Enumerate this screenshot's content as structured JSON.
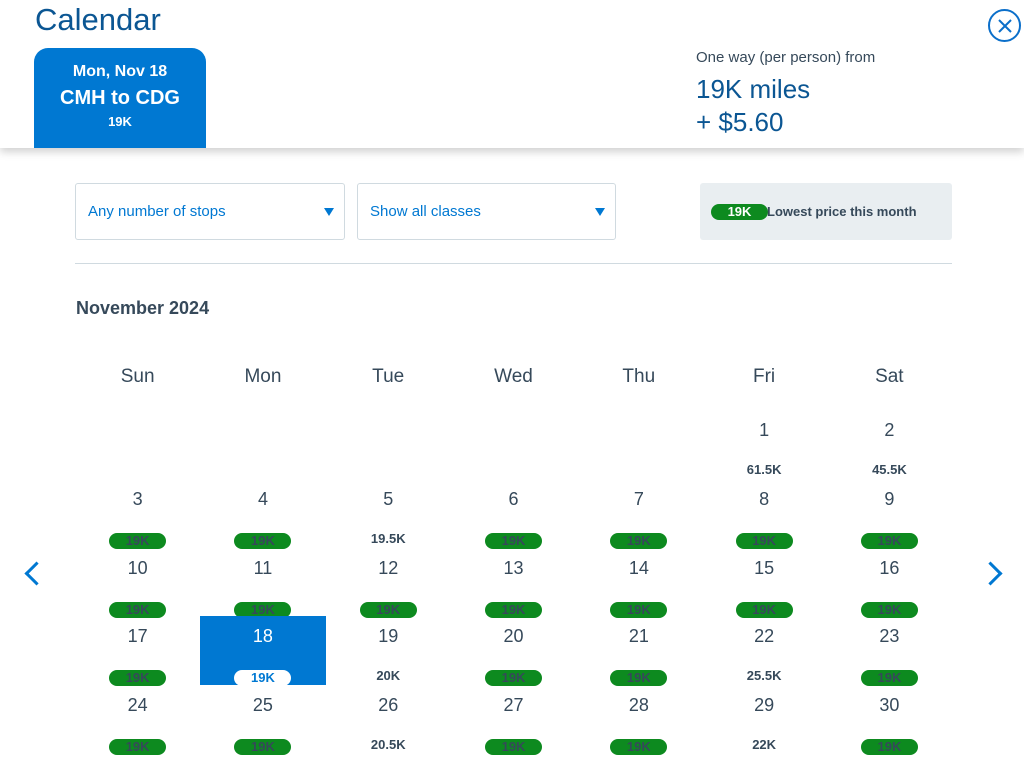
{
  "header": {
    "title": "Calendar",
    "trip": {
      "date": "Mon, Nov 18",
      "route": "CMH to CDG",
      "price": "19K"
    },
    "fare": {
      "label": "One way (per person) from",
      "miles": "19K miles",
      "tax": "+ $5.60"
    }
  },
  "filters": {
    "stops": "Any number of stops",
    "classes": "Show all classes"
  },
  "legend": {
    "badge": "19K",
    "text": "Lowest price this month"
  },
  "calendar": {
    "month": "November 2024",
    "weekdays": [
      "Sun",
      "Mon",
      "Tue",
      "Wed",
      "Thu",
      "Fri",
      "Sat"
    ],
    "selected_day": 18,
    "lowest_price": "19K",
    "days": [
      {
        "day": "",
        "price": ""
      },
      {
        "day": "",
        "price": ""
      },
      {
        "day": "",
        "price": ""
      },
      {
        "day": "",
        "price": ""
      },
      {
        "day": "",
        "price": ""
      },
      {
        "day": "1",
        "price": "61.5K",
        "lowest": false
      },
      {
        "day": "2",
        "price": "45.5K",
        "lowest": false
      },
      {
        "day": "3",
        "price": "19K",
        "lowest": true
      },
      {
        "day": "4",
        "price": "19K",
        "lowest": true
      },
      {
        "day": "5",
        "price": "19.5K",
        "lowest": false
      },
      {
        "day": "6",
        "price": "19K",
        "lowest": true
      },
      {
        "day": "7",
        "price": "19K",
        "lowest": true
      },
      {
        "day": "8",
        "price": "19K",
        "lowest": true
      },
      {
        "day": "9",
        "price": "19K",
        "lowest": true
      },
      {
        "day": "10",
        "price": "19K",
        "lowest": true
      },
      {
        "day": "11",
        "price": "19K",
        "lowest": true
      },
      {
        "day": "12",
        "price": "19K",
        "lowest": true
      },
      {
        "day": "13",
        "price": "19K",
        "lowest": true
      },
      {
        "day": "14",
        "price": "19K",
        "lowest": true
      },
      {
        "day": "15",
        "price": "19K",
        "lowest": true
      },
      {
        "day": "16",
        "price": "19K",
        "lowest": true
      },
      {
        "day": "17",
        "price": "19K",
        "lowest": true
      },
      {
        "day": "18",
        "price": "19K",
        "lowest": true
      },
      {
        "day": "19",
        "price": "20K",
        "lowest": false
      },
      {
        "day": "20",
        "price": "19K",
        "lowest": true
      },
      {
        "day": "21",
        "price": "19K",
        "lowest": true
      },
      {
        "day": "22",
        "price": "25.5K",
        "lowest": false
      },
      {
        "day": "23",
        "price": "19K",
        "lowest": true
      },
      {
        "day": "24",
        "price": "19K",
        "lowest": true
      },
      {
        "day": "25",
        "price": "19K",
        "lowest": true
      },
      {
        "day": "26",
        "price": "20.5K",
        "lowest": false
      },
      {
        "day": "27",
        "price": "19K",
        "lowest": true
      },
      {
        "day": "28",
        "price": "19K",
        "lowest": true
      },
      {
        "day": "29",
        "price": "22K",
        "lowest": false
      },
      {
        "day": "30",
        "price": "19K",
        "lowest": true
      }
    ]
  },
  "colors": {
    "accent": "#0078d2",
    "lowest": "#0d8a1f",
    "title": "#0b5693"
  },
  "icons": {
    "close": "close-circle-icon",
    "prev": "chevron-left-icon",
    "next": "chevron-right-icon"
  }
}
